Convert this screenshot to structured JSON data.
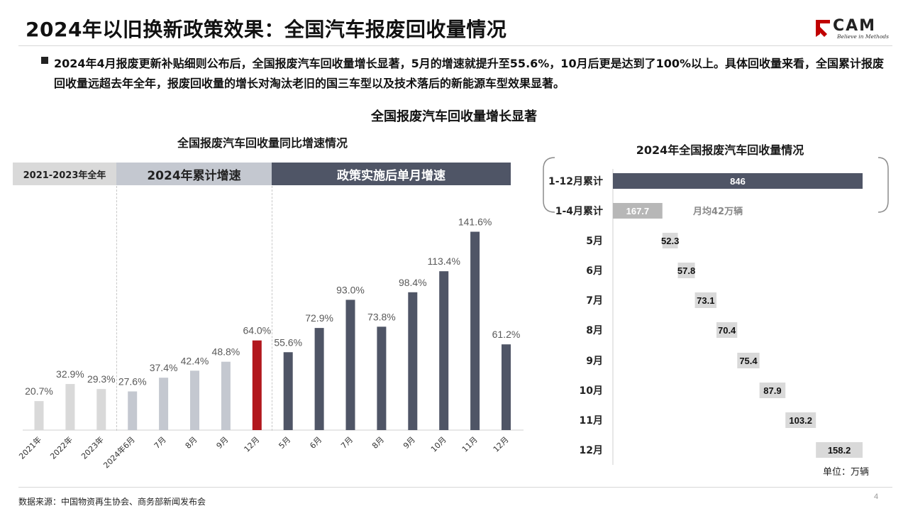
{
  "page_title": "2024年以旧换新政策效果：全国汽车报废回收量情况",
  "logo": {
    "text": "CAM",
    "slogan": "Believe in Methods"
  },
  "summary": "2024年4月报废更新补贴细则公布后，全国报废汽车回收量增长显著，5月的增速就提升至55.6%，10月后更是达到了100%以上。具体回收量来看，全国累计报废回收量远超去年全年，报废回收量的增长对淘汰老旧的国三车型以及技术落后的新能源车型效果显著。",
  "center_title": "全国报废汽车回收量增长显著",
  "bands": [
    "2021-2023年全年",
    "2024年累计增速",
    "政策实施后单月增速"
  ],
  "colors": {
    "light_gray": "#d9d9d9",
    "light_blue_gray": "#c4c8d0",
    "highlight_red": "#b2171d",
    "dark_slate": "#4f5566",
    "medium_gray": "#b7b7b7"
  },
  "chart_data": [
    {
      "type": "bar",
      "title": "全国报废汽车回收量同比增速情况",
      "categories": [
        "2021年",
        "2022年",
        "2023年",
        "2024年6月",
        "7月",
        "8月",
        "9月",
        "12月",
        "5月",
        "6月",
        "7月",
        "8月",
        "9月",
        "10月",
        "11月",
        "12月"
      ],
      "values": [
        20.7,
        32.9,
        29.3,
        27.6,
        37.4,
        42.4,
        48.8,
        64.0,
        55.6,
        72.9,
        93.0,
        73.8,
        98.4,
        113.4,
        141.6,
        61.2
      ],
      "data_labels": [
        "20.7%",
        "32.9%",
        "29.3%",
        "27.6%",
        "37.4%",
        "42.4%",
        "48.8%",
        "64.0%",
        "55.6%",
        "72.9%",
        "93.0%",
        "73.8%",
        "98.4%",
        "113.4%",
        "141.6%",
        "61.2%"
      ],
      "groups": [
        "2021-2023年全年",
        "2021-2023年全年",
        "2021-2023年全年",
        "2024年累计增速",
        "2024年累计增速",
        "2024年累计增速",
        "2024年累计增速",
        "2024年累计增速",
        "政策实施后单月增速",
        "政策实施后单月增速",
        "政策实施后单月增速",
        "政策实施后单月增速",
        "政策实施后单月增速",
        "政策实施后单月增速",
        "政策实施后单月增速",
        "政策实施后单月增速"
      ],
      "highlight": "12月 (2024年累计)",
      "ylim": [
        0,
        160
      ],
      "grid": false
    },
    {
      "type": "bar",
      "orientation": "horizontal",
      "title": "2024年全国报废汽车回收量情况",
      "categories": [
        "1-12月累计",
        "1-4月累计",
        "5月",
        "6月",
        "7月",
        "8月",
        "9月",
        "10月",
        "11月",
        "12月"
      ],
      "values": [
        846,
        167.7,
        52.3,
        57.8,
        73.1,
        70.4,
        75.4,
        87.9,
        103.2,
        158.2
      ],
      "data_labels": [
        "846",
        "167.7",
        "52.3",
        "57.8",
        "73.1",
        "70.4",
        "75.4",
        "87.9",
        "103.2",
        "158.2"
      ],
      "style": "waterfall",
      "annotation": "月均42万辆",
      "unit": "单位：万辆",
      "xlim": [
        0,
        846
      ]
    }
  ],
  "source": "数据来源：中国物资再生协会、商务部新闻发布会",
  "page_number": "4"
}
